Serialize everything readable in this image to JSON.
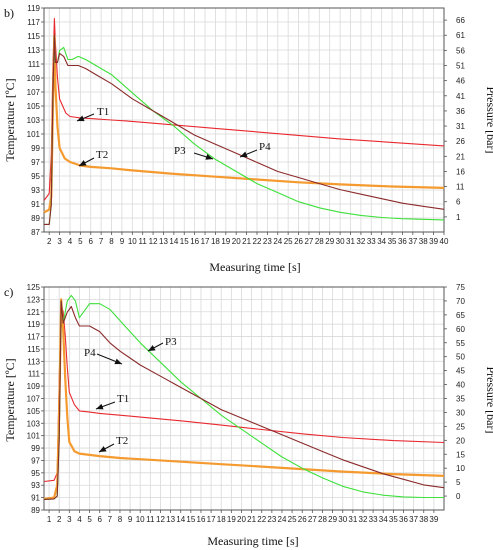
{
  "chart_data": [
    {
      "panel_label": "b)",
      "type": "line",
      "xlabel": "Measuring time [s]",
      "ylabel_left": "Temperature [ºC]",
      "ylabel_right": "Pressure [bar]",
      "xlim": [
        1.5,
        40
      ],
      "x_ticks": [
        2,
        3,
        4,
        5,
        6,
        7,
        8,
        9,
        10,
        11,
        12,
        13,
        14,
        15,
        16,
        17,
        18,
        19,
        20,
        21,
        22,
        23,
        24,
        25,
        26,
        27,
        28,
        29,
        30,
        31,
        32,
        33,
        34,
        35,
        36,
        37,
        38,
        39,
        40
      ],
      "ylim_left": [
        87,
        119
      ],
      "y_ticks_left": [
        87,
        89,
        91,
        93,
        95,
        97,
        99,
        101,
        103,
        105,
        107,
        109,
        111,
        113,
        115,
        117,
        119
      ],
      "ylim_right": [
        -4,
        70
      ],
      "y_ticks_right": [
        1,
        6,
        11,
        16,
        21,
        26,
        31,
        36,
        41,
        46,
        51,
        56,
        61,
        66
      ],
      "grid": true,
      "series": [
        {
          "name": "T1",
          "axis": "left",
          "color": "#e8282f",
          "x": [
            1.5,
            2.0,
            2.2,
            2.35,
            2.5,
            2.6,
            2.8,
            3.0,
            3.3,
            3.6,
            4.0,
            5,
            6,
            8,
            10,
            14,
            18,
            22,
            26,
            30,
            35,
            40
          ],
          "y": [
            91.5,
            92.5,
            98,
            110,
            117.5,
            114,
            109,
            106,
            105,
            104,
            103.5,
            103.3,
            103.2,
            103,
            102.8,
            102.3,
            101.8,
            101.3,
            100.8,
            100.3,
            99.8,
            99.3
          ]
        },
        {
          "name": "T2",
          "axis": "left",
          "color": "#f59a2f",
          "x": [
            1.5,
            2.0,
            2.2,
            2.35,
            2.5,
            2.6,
            2.8,
            3.0,
            3.5,
            4.0,
            5,
            6,
            8,
            10,
            14,
            18,
            22,
            26,
            30,
            35,
            40
          ],
          "y": [
            89.8,
            90.2,
            92,
            104,
            115,
            108,
            102,
            99,
            97.5,
            97,
            96.5,
            96.3,
            96.1,
            95.8,
            95.3,
            94.9,
            94.5,
            94.1,
            93.8,
            93.5,
            93.3
          ]
        },
        {
          "name": "P3",
          "axis": "right",
          "color": "#3ee03a",
          "x": [
            1.5,
            2.0,
            2.2,
            2.35,
            2.5,
            2.6,
            2.8,
            3.0,
            3.4,
            3.8,
            4.2,
            4.8,
            5.5,
            6.5,
            8,
            10,
            12,
            14,
            16,
            18,
            20,
            22,
            24,
            26,
            28,
            30,
            32,
            34,
            36,
            38,
            40
          ],
          "y": [
            -1.5,
            -1.5,
            5,
            40,
            61,
            52,
            52,
            56,
            57,
            53,
            53,
            54,
            53,
            51,
            48,
            42,
            36,
            31,
            25,
            20,
            16,
            12,
            9,
            6,
            4,
            2.5,
            1.5,
            0.8,
            0.4,
            0.2,
            0
          ]
        },
        {
          "name": "P4",
          "axis": "right",
          "color": "#8b2a2a",
          "x": [
            1.5,
            2.0,
            2.2,
            2.35,
            2.5,
            2.6,
            2.8,
            3.0,
            3.4,
            3.8,
            4.2,
            4.8,
            5.5,
            6.5,
            8,
            10,
            12,
            14,
            16,
            18,
            20,
            22,
            24,
            26,
            28,
            30,
            32,
            34,
            36,
            38,
            40
          ],
          "y": [
            -1.5,
            -1.5,
            5,
            40,
            61,
            52,
            52,
            55,
            54,
            51,
            51,
            51,
            50,
            48,
            45,
            40,
            36,
            32,
            28,
            25,
            22,
            19,
            16,
            14,
            12,
            10,
            8.5,
            7,
            5.5,
            4.5,
            3.5
          ]
        }
      ],
      "annotations": [
        "T1",
        "T2",
        "P3",
        "P4"
      ]
    },
    {
      "panel_label": "c)",
      "type": "line",
      "xlabel": "Measuring time [s]",
      "ylabel_left": "Temperature [ºC]",
      "ylabel_right": "Pressure [bar]",
      "xlim": [
        0.5,
        40
      ],
      "x_ticks": [
        1,
        2,
        3,
        4,
        5,
        6,
        7,
        8,
        9,
        10,
        11,
        12,
        13,
        14,
        15,
        16,
        17,
        18,
        19,
        20,
        21,
        22,
        23,
        24,
        25,
        26,
        27,
        28,
        29,
        30,
        31,
        32,
        33,
        34,
        35,
        36,
        37,
        38,
        39
      ],
      "ylim_left": [
        89,
        125
      ],
      "y_ticks_left": [
        89,
        91,
        93,
        95,
        97,
        99,
        101,
        103,
        105,
        107,
        109,
        111,
        113,
        115,
        117,
        119,
        121,
        123,
        125
      ],
      "ylim_right": [
        -5,
        75
      ],
      "y_ticks_right": [
        0,
        5,
        10,
        15,
        20,
        25,
        30,
        35,
        40,
        45,
        50,
        55,
        60,
        65,
        70,
        75
      ],
      "grid": true,
      "series": [
        {
          "name": "T1",
          "axis": "left",
          "color": "#e8282f",
          "x": [
            0.5,
            1.5,
            1.8,
            2.0,
            2.2,
            2.4,
            2.6,
            2.8,
            3.0,
            3.5,
            4.0,
            5,
            6,
            8,
            10,
            14,
            18,
            22,
            26,
            30,
            35,
            40
          ],
          "y": [
            93.6,
            93.8,
            95,
            110,
            122,
            121,
            117,
            112,
            108,
            106,
            105,
            104.8,
            104.6,
            104.3,
            104,
            103.4,
            102.7,
            102,
            101.3,
            100.7,
            100.2,
            99.9
          ]
        },
        {
          "name": "T2",
          "axis": "left",
          "color": "#f59a2f",
          "x": [
            0.5,
            1.5,
            1.8,
            2.0,
            2.2,
            2.4,
            2.6,
            2.8,
            3.0,
            3.5,
            4.0,
            5,
            6,
            8,
            10,
            14,
            18,
            22,
            26,
            30,
            35,
            40
          ],
          "y": [
            90.8,
            91,
            93,
            105,
            123,
            118,
            110,
            104,
            100,
            98.5,
            98.1,
            97.9,
            97.7,
            97.4,
            97.2,
            96.8,
            96.4,
            96,
            95.6,
            95.2,
            94.8,
            94.5
          ]
        },
        {
          "name": "P3",
          "axis": "right",
          "color": "#3ee03a",
          "x": [
            0.5,
            1.5,
            1.8,
            2.0,
            2.2,
            2.4,
            2.8,
            3.2,
            3.6,
            4.0,
            4.4,
            5.0,
            6,
            7,
            8,
            10,
            12,
            14,
            16,
            18,
            20,
            22,
            24,
            26,
            28,
            30,
            32,
            34,
            36,
            38,
            40
          ],
          "y": [
            -1.2,
            -1,
            0,
            20,
            70,
            62,
            70,
            72,
            70,
            64,
            66,
            69,
            69,
            67,
            63,
            55,
            48,
            41,
            35,
            29,
            24,
            19,
            14,
            10,
            6.5,
            3.5,
            1.5,
            0.3,
            -0.3,
            -0.5,
            -0.5
          ]
        },
        {
          "name": "P4",
          "axis": "right",
          "color": "#8b2a2a",
          "x": [
            0.5,
            1.5,
            1.8,
            2.0,
            2.2,
            2.4,
            2.8,
            3.2,
            3.6,
            4.0,
            4.4,
            5.0,
            6,
            7,
            8,
            10,
            12,
            14,
            16,
            18,
            20,
            22,
            24,
            26,
            28,
            30,
            32,
            34,
            36,
            38,
            40
          ],
          "y": [
            -1.2,
            -1,
            0,
            20,
            70,
            62,
            66,
            68,
            64,
            61,
            61,
            61,
            59,
            55,
            52,
            47,
            43,
            39,
            35,
            31,
            28,
            25,
            22,
            19,
            16,
            13,
            10.5,
            8,
            6,
            4,
            3
          ]
        }
      ],
      "annotations": [
        "T1",
        "T2",
        "P3",
        "P4"
      ]
    }
  ]
}
